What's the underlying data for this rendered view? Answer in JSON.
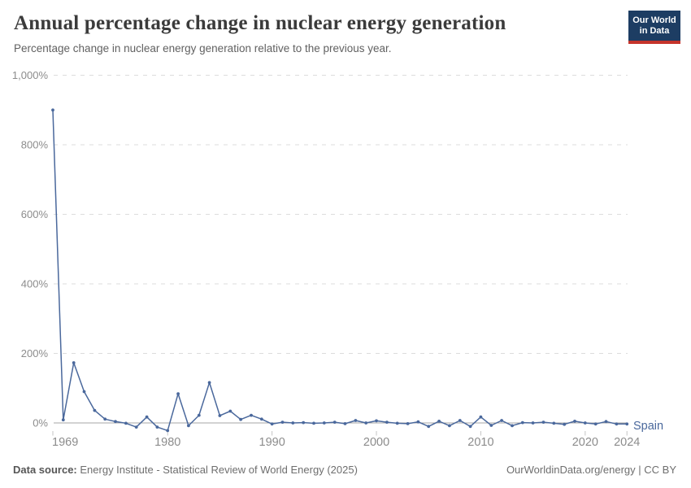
{
  "header": {
    "title": "Annual percentage change in nuclear energy generation",
    "subtitle": "Percentage change in nuclear energy generation relative to the previous year.",
    "logo": {
      "line1": "Our World",
      "line2": "in Data"
    }
  },
  "footer": {
    "source_label": "Data source:",
    "source": "Energy Institute - Statistical Review of World Energy (2025)",
    "credit": "OurWorldinData.org/energy | CC BY"
  },
  "colors": {
    "line": "#4a689c",
    "grid": "#dcdcdc",
    "zero_line": "#a5a5a5",
    "tick": "#c4c4c4",
    "axis_text": "#8c8c8c",
    "logo_bg": "#1d3d63",
    "logo_red": "#c5342b"
  },
  "chart_data": {
    "type": "line",
    "title": "Annual percentage change in nuclear energy generation",
    "subtitle": "Percentage change in nuclear energy generation relative to the previous year.",
    "unit": "%",
    "grid": "horizontal-dashed",
    "legend_position": "end-of-line",
    "xlim": [
      1969,
      2024
    ],
    "ylim": [
      -25,
      1000
    ],
    "yticks": [
      {
        "value": 0,
        "label": "0%"
      },
      {
        "value": 200,
        "label": "200%"
      },
      {
        "value": 400,
        "label": "400%"
      },
      {
        "value": 600,
        "label": "600%"
      },
      {
        "value": 800,
        "label": "800%"
      },
      {
        "value": 1000,
        "label": "1,000%"
      }
    ],
    "xticks": [
      {
        "value": 1969,
        "label": "1969"
      },
      {
        "value": 1980,
        "label": "1980"
      },
      {
        "value": 1990,
        "label": "1990"
      },
      {
        "value": 2000,
        "label": "2000"
      },
      {
        "value": 2010,
        "label": "2010"
      },
      {
        "value": 2020,
        "label": "2020"
      },
      {
        "value": 2024,
        "label": "2024"
      }
    ],
    "x": [
      1969,
      1970,
      1971,
      1972,
      1973,
      1974,
      1975,
      1976,
      1977,
      1978,
      1979,
      1980,
      1981,
      1982,
      1983,
      1984,
      1985,
      1986,
      1987,
      1988,
      1989,
      1990,
      1991,
      1992,
      1993,
      1994,
      1995,
      1996,
      1997,
      1998,
      1999,
      2000,
      2001,
      2002,
      2003,
      2004,
      2005,
      2006,
      2007,
      2008,
      2009,
      2010,
      2011,
      2012,
      2013,
      2014,
      2015,
      2016,
      2017,
      2018,
      2019,
      2020,
      2021,
      2022,
      2023,
      2024
    ],
    "series": [
      {
        "name": "Spain",
        "values": [
          900,
          9,
          173,
          90,
          36,
          11,
          4,
          -1,
          -12,
          17,
          -12,
          -22,
          84,
          -8,
          22,
          116,
          21,
          34,
          10,
          22,
          11,
          -3,
          2,
          0,
          1,
          -1,
          0,
          2,
          -2,
          7,
          0,
          6,
          2,
          -1,
          -2,
          3,
          -10,
          5,
          -8,
          7,
          -10,
          17,
          -7,
          7,
          -8,
          1,
          0,
          2,
          -1,
          -4,
          5,
          0,
          -3,
          4,
          -3,
          -3
        ]
      }
    ]
  }
}
